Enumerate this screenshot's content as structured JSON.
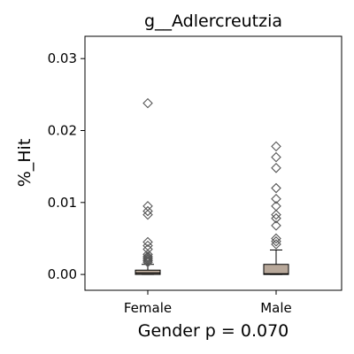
{
  "chart_data": {
    "type": "boxplot",
    "title": "g__Adlercreutzia",
    "xlabel": "Gender p = 0.070",
    "ylabel": "%_Hit",
    "ylim": [
      -0.0022,
      0.0331
    ],
    "yticks": [
      0.0,
      0.01,
      0.02,
      0.03
    ],
    "ytick_labels": [
      "0.00",
      "0.01",
      "0.02",
      "0.03"
    ],
    "categories": [
      "Female",
      "Male"
    ],
    "grid": false,
    "legend": "none",
    "box_color": "#b8a89a",
    "series": [
      {
        "category": "Female",
        "min": 0.0,
        "q1": 0.0,
        "median": 0.0002,
        "q3": 0.0006,
        "max": 0.0014,
        "outliers": [
          0.0017,
          0.0019,
          0.0021,
          0.0023,
          0.0025,
          0.0028,
          0.0035,
          0.004,
          0.0045,
          0.0083,
          0.0088,
          0.0095,
          0.0238
        ]
      },
      {
        "category": "Male",
        "min": 0.0,
        "q1": 0.0,
        "median": 0.0001,
        "q3": 0.0014,
        "max": 0.0034,
        "outliers": [
          0.0042,
          0.0046,
          0.005,
          0.0068,
          0.0078,
          0.0083,
          0.0095,
          0.0105,
          0.012,
          0.0148,
          0.0163,
          0.0178
        ]
      }
    ]
  }
}
